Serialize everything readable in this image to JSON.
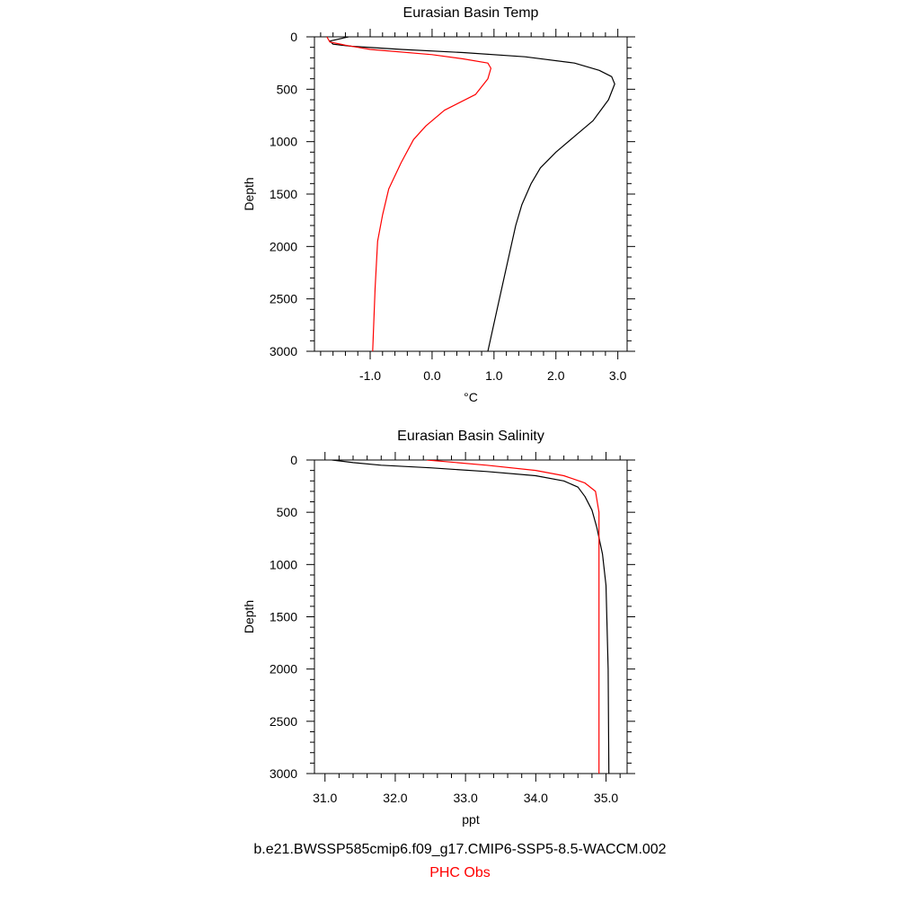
{
  "colors": {
    "model": "#000000",
    "obs": "#ff0000"
  },
  "footer": {
    "case_name": "b.e21.BWSSP585cmip6.f09_g17.CMIP6-SSP5-8.5-WACCM.002",
    "obs_name": "PHC Obs"
  },
  "chart_data": [
    {
      "type": "line",
      "title": "Eurasian Basin Temp",
      "xlabel": "°C",
      "ylabel": "Depth",
      "xlim": [
        -1.9,
        3.15
      ],
      "ylim": [
        3000,
        0
      ],
      "y_inverted": true,
      "xticks": [
        -1.0,
        0.0,
        1.0,
        2.0,
        3.0
      ],
      "xtick_labels": [
        "-1.0",
        "0.0",
        "1.0",
        "2.0",
        "3.0"
      ],
      "yticks": [
        0,
        500,
        1000,
        1500,
        2000,
        2500,
        3000
      ],
      "ytick_labels": [
        "0",
        "500",
        "1000",
        "1500",
        "2000",
        "2500",
        "3000"
      ],
      "legend": "none",
      "grid": false,
      "series": [
        {
          "color": "#000000",
          "x": [
            -1.35,
            -1.65,
            -1.6,
            -1.3,
            -0.5,
            0.5,
            1.5,
            2.3,
            2.7,
            2.9,
            2.95,
            2.85,
            2.6,
            2.3,
            2.0,
            1.75,
            1.6,
            1.45,
            1.35,
            1.2,
            1.05,
            0.9
          ],
          "y": [
            0,
            40,
            70,
            90,
            120,
            150,
            190,
            250,
            320,
            380,
            450,
            600,
            800,
            950,
            1100,
            1250,
            1400,
            1600,
            1800,
            2200,
            2600,
            3000
          ]
        },
        {
          "color": "#ff0000",
          "x": [
            -1.7,
            -1.65,
            -1.4,
            -1.0,
            0.0,
            0.5,
            0.9,
            0.95,
            0.9,
            0.7,
            0.2,
            -0.1,
            -0.3,
            -0.5,
            -0.7,
            -0.8,
            -0.88,
            -0.92,
            -0.96
          ],
          "y": [
            0,
            50,
            80,
            120,
            170,
            210,
            250,
            300,
            400,
            550,
            700,
            850,
            980,
            1200,
            1450,
            1700,
            1950,
            2400,
            3000
          ]
        }
      ]
    },
    {
      "type": "line",
      "title": "Eurasian Basin Salinity",
      "xlabel": "ppt",
      "ylabel": "Depth",
      "xlim": [
        30.85,
        35.3
      ],
      "ylim": [
        3000,
        0
      ],
      "y_inverted": true,
      "xticks": [
        31.0,
        32.0,
        33.0,
        34.0,
        35.0
      ],
      "xtick_labels": [
        "31.0",
        "32.0",
        "33.0",
        "34.0",
        "35.0"
      ],
      "yticks": [
        0,
        500,
        1000,
        1500,
        2000,
        2500,
        3000
      ],
      "ytick_labels": [
        "0",
        "500",
        "1000",
        "1500",
        "2000",
        "2500",
        "3000"
      ],
      "legend": "none",
      "grid": false,
      "series": [
        {
          "color": "#000000",
          "x": [
            31.1,
            31.4,
            31.8,
            32.5,
            33.3,
            34.0,
            34.4,
            34.6,
            34.7,
            34.8,
            34.87,
            34.95,
            35.0,
            35.03,
            35.04
          ],
          "y": [
            0,
            25,
            50,
            75,
            110,
            150,
            200,
            260,
            350,
            480,
            650,
            900,
            1200,
            2000,
            3000
          ]
        },
        {
          "color": "#ff0000",
          "x": [
            32.45,
            32.7,
            33.3,
            34.0,
            34.4,
            34.7,
            34.85,
            34.9,
            34.9,
            34.9,
            34.9
          ],
          "y": [
            0,
            15,
            50,
            100,
            150,
            220,
            300,
            500,
            800,
            1500,
            3000
          ]
        }
      ]
    }
  ]
}
